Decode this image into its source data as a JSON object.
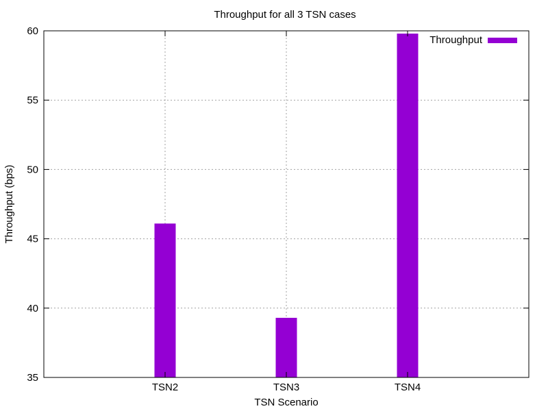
{
  "chart_data": {
    "type": "bar",
    "title": "Throughput for all 3 TSN cases",
    "xlabel": "TSN Scenario",
    "ylabel": "Throughput (bps)",
    "categories": [
      "TSN2",
      "TSN3",
      "TSN4"
    ],
    "series": [
      {
        "name": "Throughput",
        "values": [
          46.1,
          39.3,
          59.8
        ],
        "color": "#9400d3"
      }
    ],
    "ylim": [
      35,
      60
    ],
    "yticks": [
      35,
      40,
      45,
      50,
      55,
      60
    ],
    "grid": true,
    "grid_style": "dotted",
    "legend_position": "top-right"
  }
}
